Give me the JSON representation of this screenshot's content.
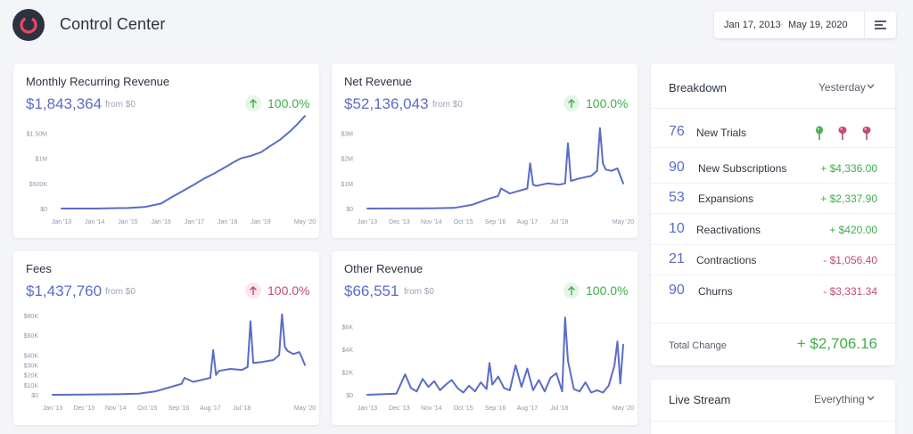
{
  "header": {
    "app_title": "Control Center",
    "date_start": "Jan 17, 2013",
    "date_end": "May 19, 2020",
    "date_separator": "–"
  },
  "colors": {
    "accent": "#5a6cc7",
    "up": "#3fae4a",
    "down": "#c54a79",
    "logo_ring": "#e8485f"
  },
  "cards": [
    {
      "title": "Monthly Recurring Revenue",
      "value": "$1,843,364",
      "from": "from $0",
      "change": "100.0%",
      "direction": "up"
    },
    {
      "title": "Net Revenue",
      "value": "$52,136,043",
      "from": "from $0",
      "change": "100.0%",
      "direction": "up"
    },
    {
      "title": "Fees",
      "value": "$1,437,760",
      "from": "from $0",
      "change": "100.0%",
      "direction": "down"
    },
    {
      "title": "Other Revenue",
      "value": "$66,551",
      "from": "from $0",
      "change": "100.0%",
      "direction": "up"
    }
  ],
  "chart_data": [
    {
      "type": "line",
      "title": "Monthly Recurring Revenue",
      "y_ticks": [
        "$0",
        "$500K",
        "$1M",
        "$1.50M"
      ],
      "y_tick_values": [
        0,
        500000,
        1000000,
        1500000
      ],
      "ylim": [
        0,
        1900000
      ],
      "x_ticks": [
        "Jan '13",
        "Jan '14",
        "Jan '15",
        "Jan '16",
        "Jan '17",
        "Jan '18",
        "Jan '19",
        "May '20"
      ],
      "x_tick_positions": [
        0,
        1,
        2,
        3,
        4,
        5,
        6,
        7.33
      ],
      "x": [
        0,
        1,
        2,
        2.5,
        3,
        3.3,
        3.6,
        4,
        4.3,
        4.6,
        5,
        5.2,
        5.4,
        5.7,
        6,
        6.3,
        6.6,
        6.9,
        7.1,
        7.33
      ],
      "values": [
        0,
        0,
        10000,
        30000,
        100000,
        220000,
        330000,
        480000,
        600000,
        700000,
        850000,
        930000,
        1000000,
        1050000,
        1120000,
        1250000,
        1380000,
        1550000,
        1680000,
        1843364
      ]
    },
    {
      "type": "line",
      "title": "Net Revenue",
      "y_ticks": [
        "$0",
        "$1M",
        "$2M",
        "$3M"
      ],
      "y_tick_values": [
        0,
        1000000,
        2000000,
        3000000
      ],
      "ylim": [
        0,
        3300000
      ],
      "x_ticks": [
        "Jan '13",
        "Dec '13",
        "Nov '14",
        "Oct '15",
        "Sep '16",
        "Aug '17",
        "Jul '18",
        "May '20"
      ],
      "x_tick_positions": [
        0,
        11,
        22,
        33,
        44,
        55,
        66,
        88
      ],
      "x": [
        0,
        11,
        22,
        30,
        36,
        42,
        45,
        46,
        49,
        52,
        55,
        56,
        57,
        58,
        62,
        66,
        68,
        69,
        70,
        73,
        77,
        79,
        80,
        81,
        82,
        84,
        86,
        87,
        88
      ],
      "values": [
        0,
        5000,
        10000,
        30000,
        150000,
        400000,
        500000,
        800000,
        600000,
        700000,
        800000,
        1800000,
        950000,
        900000,
        1000000,
        950000,
        1000000,
        2600000,
        1100000,
        1200000,
        1300000,
        1500000,
        3200000,
        1800000,
        1550000,
        1500000,
        1600000,
        1300000,
        1000000
      ]
    },
    {
      "type": "line",
      "title": "Fees",
      "y_ticks": [
        "$0",
        "$10K",
        "$20K",
        "$30K",
        "$40K",
        "$60K",
        "$80K"
      ],
      "y_tick_values": [
        0,
        10000,
        20000,
        30000,
        40000,
        60000,
        80000
      ],
      "ylim": [
        0,
        87000
      ],
      "x_ticks": [
        "Jan '13",
        "Dec '13",
        "Nov '14",
        "Oct '15",
        "Sep '16",
        "Aug '17",
        "Jul '18",
        "May '20"
      ],
      "x_tick_positions": [
        0,
        11,
        22,
        33,
        44,
        55,
        66,
        88
      ],
      "x": [
        0,
        11,
        22,
        30,
        36,
        42,
        45,
        46,
        49,
        52,
        55,
        56,
        57,
        58,
        62,
        66,
        68,
        69,
        70,
        73,
        77,
        79,
        80,
        81,
        82,
        84,
        86,
        87,
        88
      ],
      "values": [
        0,
        200,
        500,
        1200,
        3500,
        8500,
        11000,
        17000,
        13000,
        15000,
        17000,
        45000,
        20000,
        24000,
        26000,
        25000,
        28000,
        74000,
        32000,
        33000,
        35000,
        40000,
        81000,
        48000,
        44000,
        41000,
        43000,
        37000,
        30000
      ]
    },
    {
      "type": "line",
      "title": "Other Revenue",
      "y_ticks": [
        "$0",
        "$2K",
        "$4K",
        "$6K"
      ],
      "y_tick_values": [
        0,
        2000,
        4000,
        6000
      ],
      "ylim": [
        0,
        7300
      ],
      "x_ticks": [
        "Jan '13",
        "Dec '13",
        "Nov '14",
        "Oct '15",
        "Sep '16",
        "Aug '17",
        "Jul '18",
        "May '20"
      ],
      "x_tick_positions": [
        0,
        11,
        22,
        33,
        44,
        55,
        66,
        88
      ],
      "x": [
        0,
        10,
        13,
        15,
        17,
        19,
        21,
        23,
        25,
        27,
        29,
        31,
        33,
        35,
        37,
        39,
        41,
        42,
        43,
        45,
        47,
        49,
        51,
        53,
        55,
        57,
        59,
        61,
        63,
        65,
        67,
        68,
        69,
        71,
        73,
        75,
        77,
        79,
        81,
        83,
        85,
        86,
        87,
        88
      ],
      "values": [
        0,
        100,
        1800,
        600,
        300,
        1400,
        700,
        1200,
        400,
        900,
        1300,
        600,
        200,
        800,
        300,
        1100,
        500,
        2800,
        900,
        1600,
        600,
        400,
        2600,
        700,
        2300,
        400,
        1300,
        300,
        1500,
        1900,
        300,
        6800,
        3000,
        500,
        300,
        1100,
        200,
        400,
        200,
        800,
        2600,
        4700,
        1000,
        4400
      ]
    }
  ],
  "breakdown": {
    "title": "Breakdown",
    "filter": "Yesterday",
    "rows": [
      {
        "count": "76",
        "label": "New Trials",
        "amount": ""
      },
      {
        "count": "90",
        "label": "New Subscriptions",
        "amount": "+ $4,336.00",
        "direction": "up"
      },
      {
        "count": "53",
        "label": "Expansions",
        "amount": "+ $2,337.90",
        "direction": "up"
      },
      {
        "count": "10",
        "label": "Reactivations",
        "amount": "+ $420.00",
        "direction": "up"
      },
      {
        "count": "21",
        "label": "Contractions",
        "amount": "- $1,056.40",
        "direction": "down"
      },
      {
        "count": "90",
        "label": "Churns",
        "amount": "- $3,331.34",
        "direction": "down"
      }
    ],
    "total_label": "Total Change",
    "total_value": "+ $2,706.16",
    "pins": [
      "green-pin-icon",
      "pink-pin-icon",
      "pink-pin-icon"
    ]
  },
  "live_stream": {
    "title": "Live Stream",
    "filter": "Everything"
  }
}
